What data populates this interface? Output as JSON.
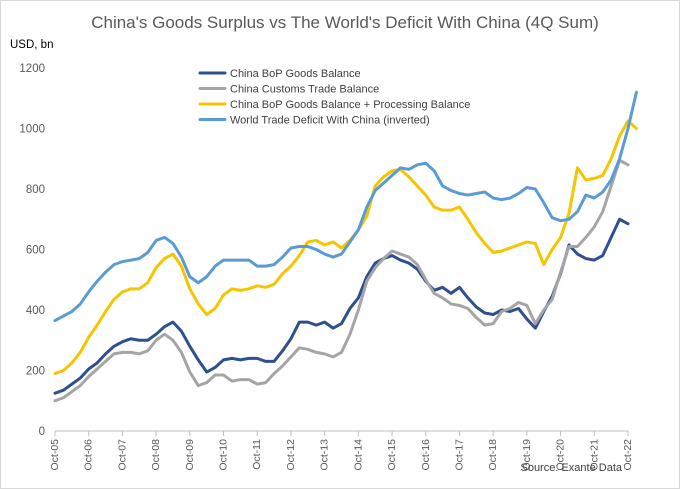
{
  "chart_data": {
    "type": "line",
    "title": "China's Goods Surplus vs The World's Deficit With China (4Q Sum)",
    "ylabel": "USD, bn",
    "source": "Source: Exante Data",
    "ylim": [
      0,
      1200
    ],
    "yticks": [
      0,
      200,
      400,
      600,
      800,
      1000,
      1200
    ],
    "xlim": [
      0,
      68
    ],
    "x_tick_labels": [
      "Oct-05",
      "Oct-06",
      "Oct-07",
      "Oct-08",
      "Oct-09",
      "Oct-10",
      "Oct-11",
      "Oct-12",
      "Oct-13",
      "Oct-14",
      "Oct-15",
      "Oct-16",
      "Oct-17",
      "Oct-18",
      "Oct-19",
      "Oct-20",
      "Oct-21",
      "Oct-22"
    ],
    "x_tick_positions": [
      0,
      4,
      8,
      12,
      16,
      20,
      24,
      28,
      32,
      36,
      40,
      44,
      48,
      52,
      56,
      60,
      64,
      68
    ],
    "grid": false,
    "legend_position": "top-left",
    "series": [
      {
        "name": "China BoP Goods Balance",
        "color": "#2f4f8f",
        "values": [
          125,
          135,
          155,
          175,
          205,
          225,
          255,
          280,
          295,
          305,
          300,
          300,
          320,
          345,
          360,
          330,
          280,
          235,
          195,
          210,
          235,
          240,
          235,
          240,
          240,
          230,
          230,
          265,
          305,
          360,
          360,
          350,
          360,
          340,
          355,
          405,
          440,
          510,
          555,
          570,
          580,
          565,
          555,
          535,
          495,
          465,
          475,
          455,
          475,
          440,
          410,
          390,
          385,
          400,
          395,
          405,
          370,
          340,
          395,
          445,
          520,
          615,
          585,
          570,
          565,
          580,
          640,
          700,
          685
        ],
        "interval_months": 3
      },
      {
        "name": "China Customs Trade Balance",
        "color": "#a5a5a5",
        "values": [
          100,
          110,
          130,
          150,
          180,
          205,
          230,
          255,
          260,
          260,
          255,
          265,
          300,
          320,
          300,
          260,
          195,
          150,
          160,
          185,
          185,
          165,
          170,
          170,
          155,
          160,
          190,
          215,
          245,
          275,
          270,
          260,
          255,
          245,
          260,
          320,
          400,
          495,
          540,
          570,
          595,
          585,
          575,
          550,
          500,
          455,
          440,
          420,
          415,
          405,
          375,
          350,
          355,
          395,
          405,
          425,
          415,
          355,
          400,
          435,
          525,
          610,
          610,
          640,
          675,
          725,
          810,
          895,
          880
        ],
        "interval_months": 3
      },
      {
        "name": "China BoP Goods Balance + Processing Balance",
        "color": "#f5c500",
        "values": [
          190,
          200,
          225,
          260,
          310,
          350,
          395,
          435,
          460,
          470,
          470,
          490,
          540,
          570,
          585,
          545,
          470,
          420,
          385,
          405,
          450,
          470,
          465,
          470,
          480,
          475,
          485,
          520,
          545,
          580,
          625,
          630,
          615,
          625,
          605,
          630,
          665,
          710,
          810,
          840,
          860,
          865,
          840,
          810,
          780,
          740,
          730,
          730,
          740,
          700,
          655,
          620,
          590,
          595,
          605,
          615,
          625,
          620,
          550,
          600,
          640,
          720,
          870,
          830,
          835,
          845,
          900,
          975,
          1025,
          1000
        ],
        "interval_months": 3
      },
      {
        "name": "World Trade Deficit With China (inverted)",
        "color": "#5b9bd5",
        "values": [
          365,
          380,
          395,
          420,
          460,
          495,
          525,
          550,
          560,
          565,
          570,
          590,
          630,
          640,
          620,
          575,
          510,
          490,
          510,
          545,
          565,
          565,
          565,
          565,
          545,
          545,
          550,
          575,
          605,
          610,
          610,
          600,
          585,
          575,
          585,
          625,
          665,
          740,
          795,
          820,
          845,
          870,
          865,
          880,
          885,
          860,
          810,
          795,
          785,
          780,
          785,
          790,
          770,
          765,
          770,
          785,
          805,
          800,
          755,
          705,
          695,
          700,
          725,
          780,
          770,
          790,
          830,
          900,
          1000,
          1120
        ],
        "interval_months": 3
      }
    ]
  }
}
